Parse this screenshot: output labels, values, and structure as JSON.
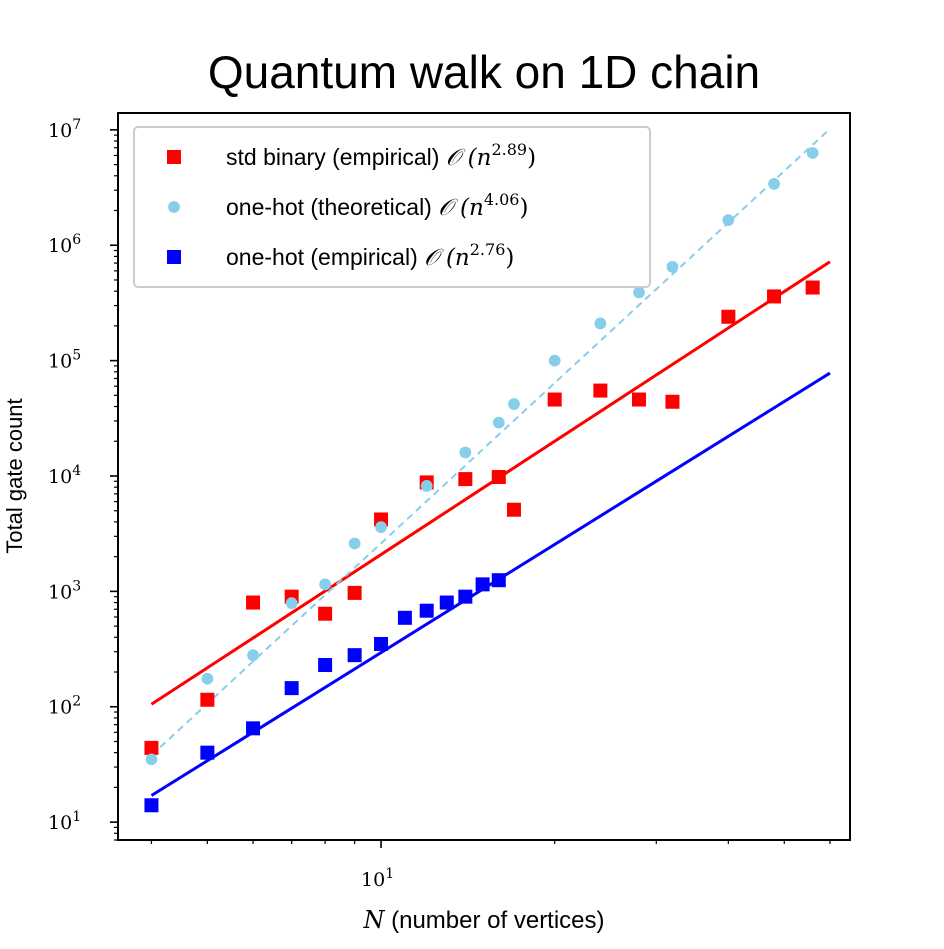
{
  "chart_data": {
    "type": "scatter",
    "title": "Quantum walk on 1D chain",
    "xlabel": {
      "var": "N",
      "rest": " (number of vertices)"
    },
    "ylabel": "Total gate count",
    "xscale": "log",
    "yscale": "log",
    "xlim": [
      3.5,
      65
    ],
    "ylim": [
      7,
      14000000
    ],
    "x_ticks": [
      {
        "value": 10,
        "base": "10",
        "exp": "1"
      }
    ],
    "y_ticks": [
      {
        "value": 10,
        "base": "10",
        "exp": "1"
      },
      {
        "value": 100,
        "base": "10",
        "exp": "2"
      },
      {
        "value": 1000,
        "base": "10",
        "exp": "3"
      },
      {
        "value": 10000,
        "base": "10",
        "exp": "4"
      },
      {
        "value": 100000,
        "base": "10",
        "exp": "5"
      },
      {
        "value": 1000000,
        "base": "10",
        "exp": "6"
      },
      {
        "value": 10000000,
        "base": "10",
        "exp": "7"
      }
    ],
    "grid": false,
    "legend_position": "top-left",
    "series": [
      {
        "name": "std binary (empirical)",
        "order_label": {
          "base": "n",
          "exp": "2.89"
        },
        "marker": "square",
        "color": "#ff0000",
        "x": [
          4,
          5,
          6,
          7,
          8,
          9,
          10,
          12,
          14,
          16,
          17,
          20,
          24,
          28,
          32,
          40,
          48,
          56
        ],
        "y": [
          44,
          115,
          800,
          900,
          640,
          970,
          4200,
          8800,
          9400,
          9800,
          5100,
          46000,
          55000,
          46000,
          44000,
          240000,
          360000,
          430000
        ],
        "fit": {
          "x": [
            4,
            60
          ],
          "y": [
            105,
            720000
          ],
          "style": "solid"
        }
      },
      {
        "name": "one-hot (theoretical)",
        "order_label": {
          "base": "n",
          "exp": "4.06"
        },
        "marker": "circle",
        "color": "#87ceeb",
        "x": [
          4,
          5,
          6,
          7,
          8,
          9,
          10,
          12,
          14,
          16,
          17,
          20,
          24,
          28,
          32,
          40,
          48,
          56
        ],
        "y": [
          35,
          175,
          280,
          790,
          1150,
          2600,
          3600,
          8200,
          16000,
          29000,
          42000,
          100000,
          210000,
          390000,
          650000,
          1650000,
          3400000,
          6300000
        ],
        "fit": {
          "x": [
            4,
            60
          ],
          "y": [
            38,
            10200000
          ],
          "style": "dashed"
        }
      },
      {
        "name": "one-hot (empirical)",
        "order_label": {
          "base": "n",
          "exp": "2.76"
        },
        "marker": "square",
        "color": "#0000ff",
        "x": [
          4,
          5,
          6,
          7,
          8,
          9,
          10,
          11,
          12,
          13,
          14,
          15,
          16
        ],
        "y": [
          14,
          40,
          65,
          145,
          230,
          280,
          350,
          590,
          680,
          800,
          900,
          1150,
          1250
        ],
        "fit": {
          "x": [
            4,
            60
          ],
          "y": [
            17,
            78000
          ],
          "style": "solid"
        }
      }
    ]
  }
}
